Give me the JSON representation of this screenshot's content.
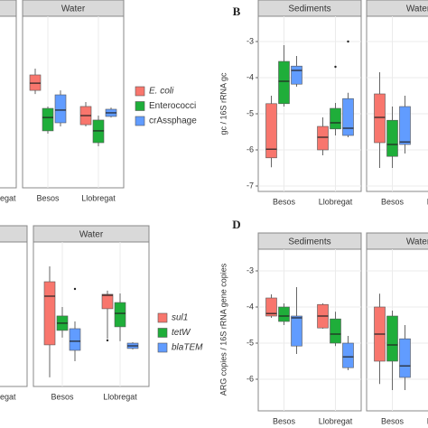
{
  "chart_data": [
    {
      "type": "box",
      "ylim": [
        0,
        10
      ],
      "categories": [
        "Besos",
        "Llobregat"
      ],
      "partial_labels": [
        "egat"
      ],
      "series": [
        {
          "name": "E. coli",
          "color": "#f8766d",
          "italic": true
        },
        {
          "name": "Enterococci",
          "color": "#1fae3a"
        },
        {
          "name": "crAssphage",
          "color": "#619cff"
        }
      ],
      "facets": [
        {
          "name": "Water",
          "boxes": [
            [
              {
                "lo": 5.47,
                "q1": 5.68,
                "med": 6.1,
                "q3": 6.58,
                "hi": 6.95
              },
              {
                "lo": 3.16,
                "q1": 3.32,
                "med": 4.1,
                "q3": 4.63,
                "hi": 4.74
              },
              {
                "lo": 3.58,
                "q1": 3.79,
                "med": 4.53,
                "q3": 5.42,
                "hi": 5.68
              }
            ],
            [
              {
                "lo": 3.58,
                "q1": 3.68,
                "med": 4.21,
                "q3": 4.74,
                "hi": 5.0
              },
              {
                "lo": 2.42,
                "q1": 2.63,
                "med": 3.32,
                "q3": 3.95,
                "hi": 4.21
              },
              {
                "lo": 4.1,
                "q1": 4.16,
                "med": 4.37,
                "q3": 4.58,
                "hi": 4.68
              }
            ]
          ]
        }
      ]
    },
    {
      "type": "box",
      "label": "B",
      "ylabel": "gc / 16S rRNA gc",
      "ylim": [
        -7.15,
        -2.3
      ],
      "yticks": [
        -3,
        -4,
        -5,
        -6,
        -7
      ],
      "categories": [
        "Besos",
        "Llobregat"
      ],
      "series": [
        {
          "name": "E. coli",
          "color": "#f8766d"
        },
        {
          "name": "Enterococci",
          "color": "#1fae3a"
        },
        {
          "name": "crAssphage",
          "color": "#619cff"
        }
      ],
      "facets": [
        {
          "name": "Sediments",
          "boxes": [
            [
              {
                "lo": -6.48,
                "q1": -6.22,
                "med": -5.98,
                "q3": -4.72,
                "hi": -4.5
              },
              {
                "lo": -4.8,
                "q1": -4.72,
                "med": -4.1,
                "q3": -3.55,
                "hi": -3.1
              },
              {
                "lo": -4.25,
                "q1": -4.18,
                "med": -3.8,
                "q3": -3.68,
                "hi": -3.4
              }
            ],
            [
              {
                "lo": -6.15,
                "q1": -6.0,
                "med": -5.65,
                "q3": -5.35,
                "hi": -5.1
              },
              {
                "lo": -5.6,
                "q1": -5.42,
                "med": -5.25,
                "q3": -4.85,
                "hi": -4.7,
                "outliers": [
                  -3.7
                ]
              },
              {
                "lo": -5.65,
                "q1": -5.6,
                "med": -5.4,
                "q3": -4.58,
                "hi": -4.42,
                "outliers": [
                  -3.0
                ]
              }
            ]
          ]
        },
        {
          "name": "Water",
          "boxes": [
            [
              {
                "lo": -6.5,
                "q1": -5.8,
                "med": -5.1,
                "q3": -4.45,
                "hi": -3.85
              },
              {
                "lo": -6.5,
                "q1": -6.18,
                "med": -5.85,
                "q3": -5.18,
                "hi": -4.8
              },
              {
                "lo": -6.1,
                "q1": -5.85,
                "med": -5.78,
                "q3": -4.8,
                "hi": -4.5
              }
            ],
            [
              null,
              null,
              null
            ]
          ]
        }
      ]
    },
    {
      "type": "box",
      "ylim": [
        0,
        10
      ],
      "categories": [
        "Besos",
        "Llobregat"
      ],
      "partial_labels": [
        "egat"
      ],
      "series": [
        {
          "name": "sul1",
          "color": "#f8766d",
          "italic": true
        },
        {
          "name": "tetW",
          "color": "#1fae3a",
          "italic": true
        },
        {
          "name": "blaTEM",
          "color": "#619cff",
          "italic": true
        }
      ],
      "facets": [
        {
          "name": "Water",
          "boxes": [
            [
              {
                "lo": 0.63,
                "q1": 2.88,
                "med": 6.25,
                "q3": 7.25,
                "hi": 8.31
              },
              {
                "lo": 3.38,
                "q1": 3.88,
                "med": 4.38,
                "q3": 4.88,
                "hi": 5.5
              },
              {
                "lo": 1.75,
                "q1": 2.5,
                "med": 3.13,
                "q3": 4.0,
                "hi": 4.5,
                "outliers": [
                  6.75
                ]
              }
            ],
            [
              {
                "lo": 3.31,
                "q1": 5.38,
                "med": 6.31,
                "q3": 6.38,
                "hi": 6.63,
                "outliers": [
                  3.19
                ]
              },
              {
                "lo": 3.13,
                "q1": 4.13,
                "med": 5.06,
                "q3": 5.81,
                "hi": 6.44
              },
              {
                "lo": 2.56,
                "q1": 2.63,
                "med": 2.81,
                "q3": 3.0,
                "hi": 3.06
              }
            ]
          ]
        }
      ]
    },
    {
      "type": "box",
      "label": "D",
      "ylabel": "ARG copies / 16S rRNA gene copies",
      "ylim": [
        -6.875,
        -2.4
      ],
      "yticks": [
        -3,
        -4,
        -5,
        -6
      ],
      "categories": [
        "Besos",
        "Llobregat"
      ],
      "series": [
        {
          "name": "sul1",
          "color": "#f8766d"
        },
        {
          "name": "tetW",
          "color": "#1fae3a"
        },
        {
          "name": "blaTEM",
          "color": "#619cff"
        }
      ],
      "facets": [
        {
          "name": "Sediments",
          "boxes": [
            [
              {
                "lo": -4.3,
                "q1": -4.25,
                "med": -4.18,
                "q3": -3.75,
                "hi": -3.65
              },
              {
                "lo": -4.5,
                "q1": -4.4,
                "med": -4.25,
                "q3": -4.0,
                "hi": -3.9
              },
              {
                "lo": -5.3,
                "q1": -5.08,
                "med": -4.3,
                "q3": -4.25,
                "hi": -3.45
              }
            ],
            [
              {
                "lo": -4.6,
                "q1": -4.58,
                "med": -4.25,
                "q3": -3.93,
                "hi": -3.9
              },
              {
                "lo": -5.08,
                "q1": -5.0,
                "med": -4.75,
                "q3": -4.33,
                "hi": -4.13
              },
              {
                "lo": -5.75,
                "q1": -5.68,
                "med": -5.38,
                "q3": -5.0,
                "hi": -4.8
              }
            ]
          ]
        },
        {
          "name": "Water",
          "boxes": [
            [
              {
                "lo": -6.13,
                "q1": -5.5,
                "med": -4.75,
                "q3": -4.0,
                "hi": -3.63
              },
              {
                "lo": -6.3,
                "q1": -5.5,
                "med": -5.05,
                "q3": -4.25,
                "hi": -4.1
              },
              {
                "lo": -6.3,
                "q1": -5.95,
                "med": -5.63,
                "q3": -4.88,
                "hi": -4.5
              }
            ],
            [
              null,
              null,
              null
            ]
          ]
        }
      ]
    }
  ]
}
